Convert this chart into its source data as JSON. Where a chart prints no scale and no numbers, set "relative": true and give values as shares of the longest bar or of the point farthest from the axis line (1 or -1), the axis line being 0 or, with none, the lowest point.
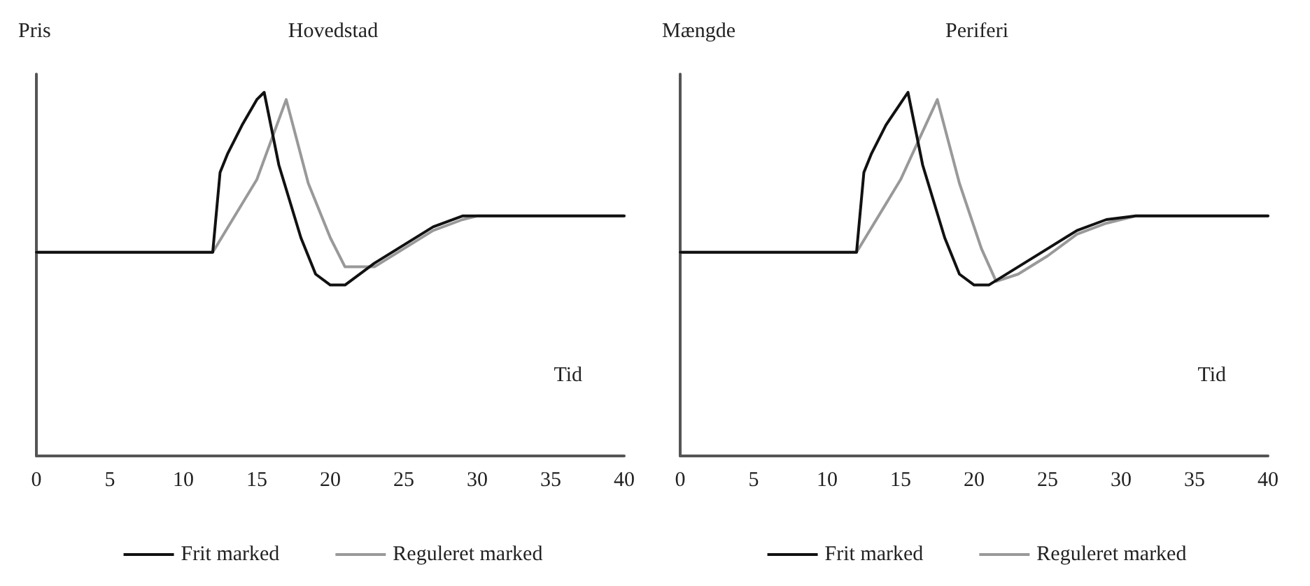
{
  "chart_data": [
    {
      "type": "line",
      "title": "Hovedstad",
      "ylabel": "Pris",
      "xlabel": "Tid",
      "relative": true,
      "xlim": [
        0,
        40
      ],
      "xticks": [
        0,
        5,
        10,
        15,
        20,
        25,
        30,
        35,
        40
      ],
      "tick_labels": "x",
      "grid": false,
      "legend": "bottom",
      "marker": "none",
      "line_style": "solid",
      "series": [
        {
          "name": "Frit marked",
          "color": "#111111",
          "x": [
            0,
            12,
            12.5,
            13,
            14,
            15,
            15.5,
            16.5,
            18,
            19,
            20,
            21,
            23,
            25,
            27,
            29,
            40
          ],
          "values": [
            0.56,
            0.56,
            0.78,
            0.83,
            0.91,
            0.98,
            1,
            0.8,
            0.6,
            0.5,
            0.47,
            0.47,
            0.53,
            0.58,
            0.63,
            0.66,
            0.66
          ]
        },
        {
          "name": "Reguleret marked",
          "color": "#999999",
          "x": [
            0,
            12,
            15,
            17,
            18.5,
            20,
            21,
            23,
            25,
            27,
            29,
            30,
            40
          ],
          "values": [
            0.56,
            0.56,
            0.76,
            0.98,
            0.75,
            0.6,
            0.52,
            0.52,
            0.57,
            0.62,
            0.65,
            0.66,
            0.66
          ]
        }
      ]
    },
    {
      "type": "line",
      "title": "Periferi",
      "ylabel": "Mængde",
      "xlabel": "Tid",
      "relative": true,
      "xlim": [
        0,
        40
      ],
      "xticks": [
        0,
        5,
        10,
        15,
        20,
        25,
        30,
        35,
        40
      ],
      "tick_labels": "x",
      "grid": false,
      "legend": "bottom",
      "marker": "none",
      "line_style": "solid",
      "series": [
        {
          "name": "Frit marked",
          "color": "#111111",
          "x": [
            0,
            12,
            12.5,
            13,
            14,
            15,
            15.5,
            16.5,
            18,
            19,
            20,
            21,
            23,
            25,
            27,
            29,
            31,
            40
          ],
          "values": [
            0.56,
            0.56,
            0.78,
            0.83,
            0.91,
            0.97,
            1,
            0.8,
            0.6,
            0.5,
            0.47,
            0.47,
            0.52,
            0.57,
            0.62,
            0.65,
            0.66,
            0.66
          ]
        },
        {
          "name": "Reguleret marked",
          "color": "#999999",
          "x": [
            0,
            12,
            15,
            17.5,
            19,
            20.5,
            21.5,
            23,
            25,
            27,
            29,
            31,
            40
          ],
          "values": [
            0.56,
            0.56,
            0.76,
            0.98,
            0.75,
            0.57,
            0.48,
            0.5,
            0.55,
            0.61,
            0.64,
            0.66,
            0.66
          ]
        }
      ]
    }
  ]
}
